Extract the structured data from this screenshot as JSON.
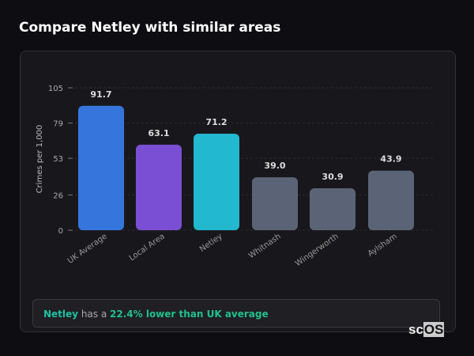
{
  "title": "Compare Netley with similar areas",
  "insight": {
    "area": "Netley",
    "middle": " has a ",
    "highlight": "22.4% lower than UK average"
  },
  "logo": {
    "prefix": "sc",
    "box": "OS"
  },
  "chart_data": {
    "type": "bar",
    "ylabel": "Crimes per 1,000",
    "ylim": [
      0,
      105
    ],
    "yticks": [
      0,
      26,
      53,
      79,
      105
    ],
    "grid": true,
    "categories": [
      "UK Average",
      "Local Area",
      "Netley",
      "Whitnash",
      "Wingerworth",
      "Aylsham"
    ],
    "values": [
      91.7,
      63.1,
      71.2,
      39.0,
      30.9,
      43.9
    ],
    "value_labels": [
      "91.7",
      "63.1",
      "71.2",
      "39.0",
      "30.9",
      "43.9"
    ],
    "colors": [
      "#3676dc",
      "#7b4fd4",
      "#22b8cf",
      "#5b6477",
      "#5b6477",
      "#5b6477"
    ]
  }
}
